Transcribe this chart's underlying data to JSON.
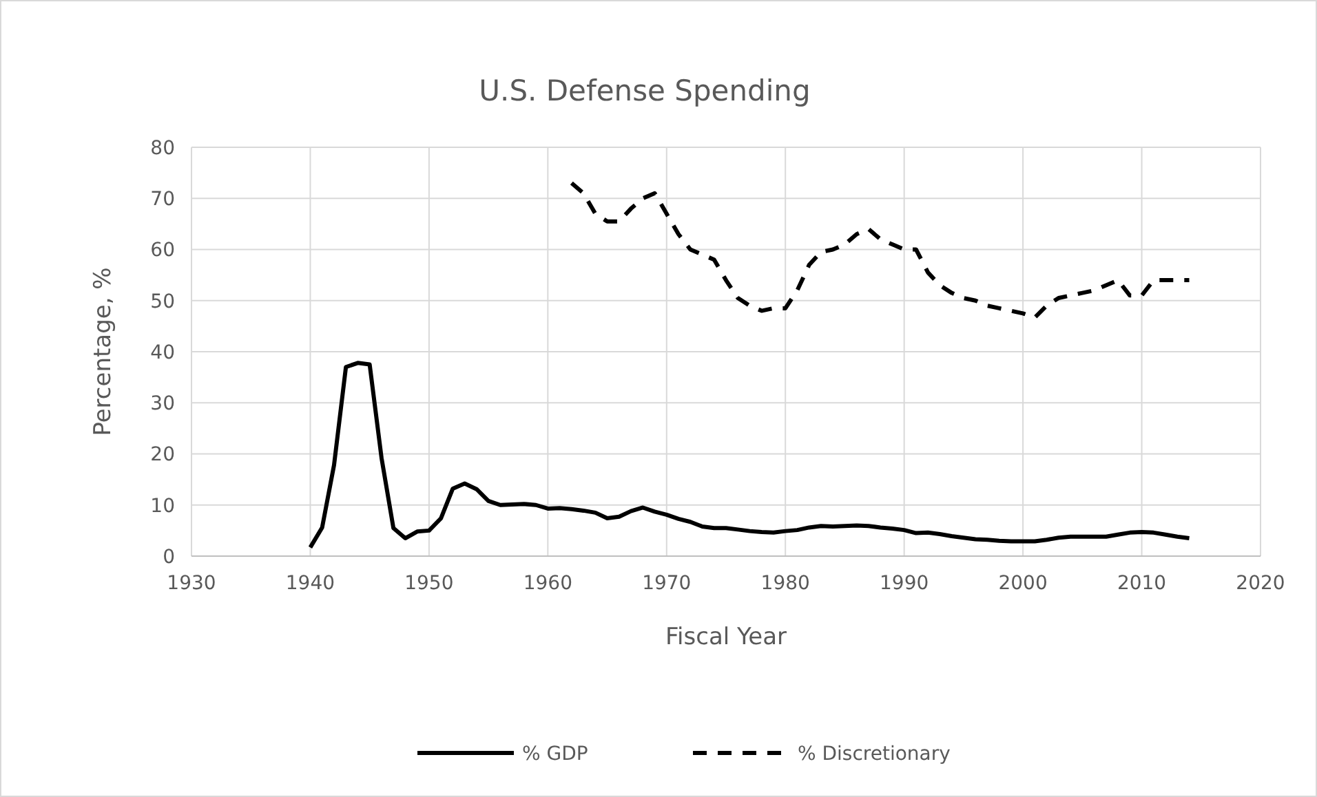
{
  "chart_data": {
    "type": "line",
    "title": "U.S. Defense  Spending",
    "xlabel": "Fiscal Year",
    "ylabel": "Percentage, %",
    "xlim": [
      1930,
      2020
    ],
    "xticks": [
      1930,
      1940,
      1950,
      1960,
      1970,
      1980,
      1990,
      2000,
      2010,
      2020
    ],
    "ylim": [
      0,
      80
    ],
    "yticks": [
      0,
      10,
      20,
      30,
      40,
      50,
      60,
      70,
      80
    ],
    "grid": true,
    "legend": "bottom",
    "series": [
      {
        "name": "% GDP",
        "color": "#000000",
        "line_style": "solid",
        "x": [
          1940,
          1941,
          1942,
          1943,
          1944,
          1945,
          1946,
          1947,
          1948,
          1949,
          1950,
          1951,
          1952,
          1953,
          1954,
          1955,
          1956,
          1957,
          1958,
          1959,
          1960,
          1961,
          1962,
          1963,
          1964,
          1965,
          1966,
          1967,
          1968,
          1969,
          1970,
          1971,
          1972,
          1973,
          1974,
          1975,
          1976,
          1977,
          1978,
          1979,
          1980,
          1981,
          1982,
          1983,
          1984,
          1985,
          1986,
          1987,
          1988,
          1989,
          1990,
          1991,
          1992,
          1993,
          1994,
          1995,
          1996,
          1997,
          1998,
          1999,
          2000,
          2001,
          2002,
          2003,
          2004,
          2005,
          2006,
          2007,
          2008,
          2009,
          2010,
          2011,
          2012,
          2013,
          2014
        ],
        "values": [
          1.7,
          5.6,
          17.8,
          37,
          37.8,
          37.5,
          19.2,
          5.5,
          3.5,
          4.8,
          5,
          7.4,
          13.2,
          14.2,
          13.1,
          10.8,
          10,
          10.1,
          10.2,
          10,
          9.3,
          9.4,
          9.2,
          8.9,
          8.5,
          7.4,
          7.7,
          8.8,
          9.5,
          8.7,
          8.1,
          7.3,
          6.7,
          5.8,
          5.5,
          5.5,
          5.2,
          4.9,
          4.7,
          4.6,
          4.9,
          5.1,
          5.6,
          5.9,
          5.8,
          5.9,
          6,
          5.9,
          5.6,
          5.4,
          5.1,
          4.5,
          4.6,
          4.3,
          3.9,
          3.6,
          3.3,
          3.2,
          3,
          2.9,
          2.9,
          2.9,
          3.2,
          3.6,
          3.8,
          3.8,
          3.8,
          3.8,
          4.2,
          4.6,
          4.7,
          4.6,
          4.2,
          3.8,
          3.5
        ]
      },
      {
        "name": "% Discretionary",
        "color": "#000000",
        "line_style": "dashed",
        "x": [
          1962,
          1963,
          1964,
          1965,
          1966,
          1967,
          1968,
          1969,
          1970,
          1971,
          1972,
          1973,
          1974,
          1975,
          1976,
          1977,
          1978,
          1979,
          1980,
          1981,
          1982,
          1983,
          1984,
          1985,
          1986,
          1987,
          1988,
          1989,
          1990,
          1991,
          1992,
          1993,
          1994,
          1995,
          1996,
          1997,
          1998,
          1999,
          2000,
          2001,
          2002,
          2003,
          2004,
          2005,
          2006,
          2007,
          2008,
          2009,
          2010,
          2011,
          2012,
          2013,
          2014
        ],
        "values": [
          73,
          71,
          67,
          65.5,
          65.5,
          68,
          70,
          71,
          67,
          63,
          60,
          59,
          58,
          54,
          50.5,
          49,
          48,
          48.5,
          48.5,
          52,
          57,
          59.5,
          60,
          61,
          63,
          64,
          62,
          61,
          60,
          60,
          55.5,
          53,
          51.5,
          50.5,
          50,
          49,
          48.5,
          48,
          47.5,
          46.7,
          49,
          50.5,
          51,
          51.5,
          52,
          53,
          54,
          51,
          51,
          54,
          54,
          54,
          54
        ]
      }
    ]
  }
}
